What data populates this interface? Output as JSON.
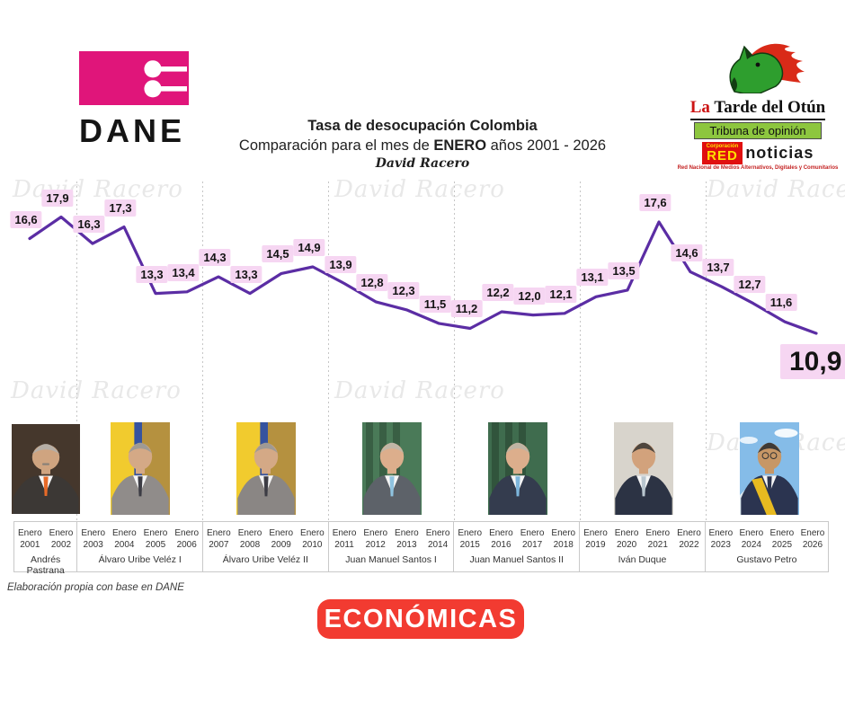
{
  "header": {
    "dane_text": "DANE"
  },
  "brand": {
    "la": "La",
    "rest": " Tarde del Otún",
    "tagline": "Tribuna de opinión",
    "red_corp": "Corporación",
    "red_main": "RED",
    "red_suffix": "noticias",
    "red_subtext": "Red Nacional de Medios Alternativos, Digitales y Comunitarios"
  },
  "chart": {
    "title": "Tasa de desocupación Colombia",
    "subtitle_prefix": "Comparación para el mes de ",
    "subtitle_bold": "ENERO",
    "subtitle_suffix": " años 2001 - 2026",
    "signature": "David Racero",
    "watermark": "David Racero",
    "source_note": "Elaboración propia con base en DANE",
    "line_color": "#5b2da4",
    "label_bg": "#f6d6f2"
  },
  "chart_data": {
    "type": "line",
    "title": "Tasa de desocupación Colombia",
    "subtitle": "Comparación para el mes de ENERO años 2001 - 2026",
    "x_tick_prefix": "Enero",
    "x": [
      2001,
      2002,
      2003,
      2004,
      2005,
      2006,
      2007,
      2008,
      2009,
      2010,
      2011,
      2012,
      2013,
      2014,
      2015,
      2016,
      2017,
      2018,
      2019,
      2020,
      2021,
      2022,
      2023,
      2024,
      2025,
      2026
    ],
    "values": [
      16.6,
      17.9,
      16.3,
      17.3,
      13.3,
      13.4,
      14.3,
      13.3,
      14.5,
      14.9,
      13.9,
      12.8,
      12.3,
      11.5,
      11.2,
      12.2,
      12.0,
      12.1,
      13.1,
      13.5,
      17.6,
      14.6,
      13.7,
      12.7,
      11.6,
      10.9
    ],
    "ylim": [
      10.5,
      18.5
    ],
    "grid": false,
    "legend": "none",
    "decimal_separator": ",",
    "groups": [
      {
        "president": "Andrés Pastrana",
        "from": 2001,
        "to": 2002
      },
      {
        "president": "Álvaro Uribe Veléz I",
        "from": 2003,
        "to": 2006
      },
      {
        "president": "Álvaro Uribe Veléz II",
        "from": 2007,
        "to": 2010
      },
      {
        "president": "Juan Manuel Santos I",
        "from": 2011,
        "to": 2014
      },
      {
        "president": "Juan Manuel Santos II",
        "from": 2015,
        "to": 2018
      },
      {
        "president": "Iván Duque",
        "from": 2019,
        "to": 2022
      },
      {
        "president": "Gustavo Petro",
        "from": 2023,
        "to": 2026
      }
    ]
  },
  "photos": [
    {
      "name": "Andrés Pastrana",
      "bg": "#45372c",
      "suit": "#3c3835",
      "tie": "#e76a28",
      "skin": "#cfa480",
      "hair": "#b5aea6",
      "wide": true,
      "mustache": true
    },
    {
      "name": "Álvaro Uribe Veléz I",
      "bg": "#b5913f",
      "flag": "co",
      "suit": "#908c8a",
      "tie": "#3c3c44",
      "skin": "#d4a986",
      "hair": "#9f9a94"
    },
    {
      "name": "Álvaro Uribe Veléz II",
      "bg": "#b5913f",
      "flag": "co",
      "suit": "#8a8684",
      "tie": "#3c3c44",
      "skin": "#d4a986",
      "hair": "#9f9a94"
    },
    {
      "name": "Juan Manuel Santos I",
      "bg": "#4a7a58",
      "flag": "green",
      "suit": "#5d6269",
      "tie": "#8fc3e0",
      "skin": "#dcae8c",
      "hair": "#c0b6a6"
    },
    {
      "name": "Juan Manuel Santos II",
      "bg": "#3f6c4e",
      "flag": "green",
      "suit": "#343c4e",
      "tie": "#7db6dc",
      "skin": "#dcae8c",
      "hair": "#beb4a4"
    },
    {
      "name": "Iván Duque",
      "bg": "#d8d4cc",
      "suit": "#2c3344",
      "tie": "#b9c6cf",
      "skin": "#d2a27c",
      "hair": "#4e463e"
    },
    {
      "name": "Gustavo Petro",
      "bg": "#85bce8",
      "sky": true,
      "suit": "#2b3450",
      "tie": "#2b3450",
      "skin": "#c79766",
      "hair": "#3e3a36",
      "sash": "#f2c21e",
      "glasses": true
    }
  ],
  "footer": {
    "badge": "ECONÓMICAS"
  }
}
